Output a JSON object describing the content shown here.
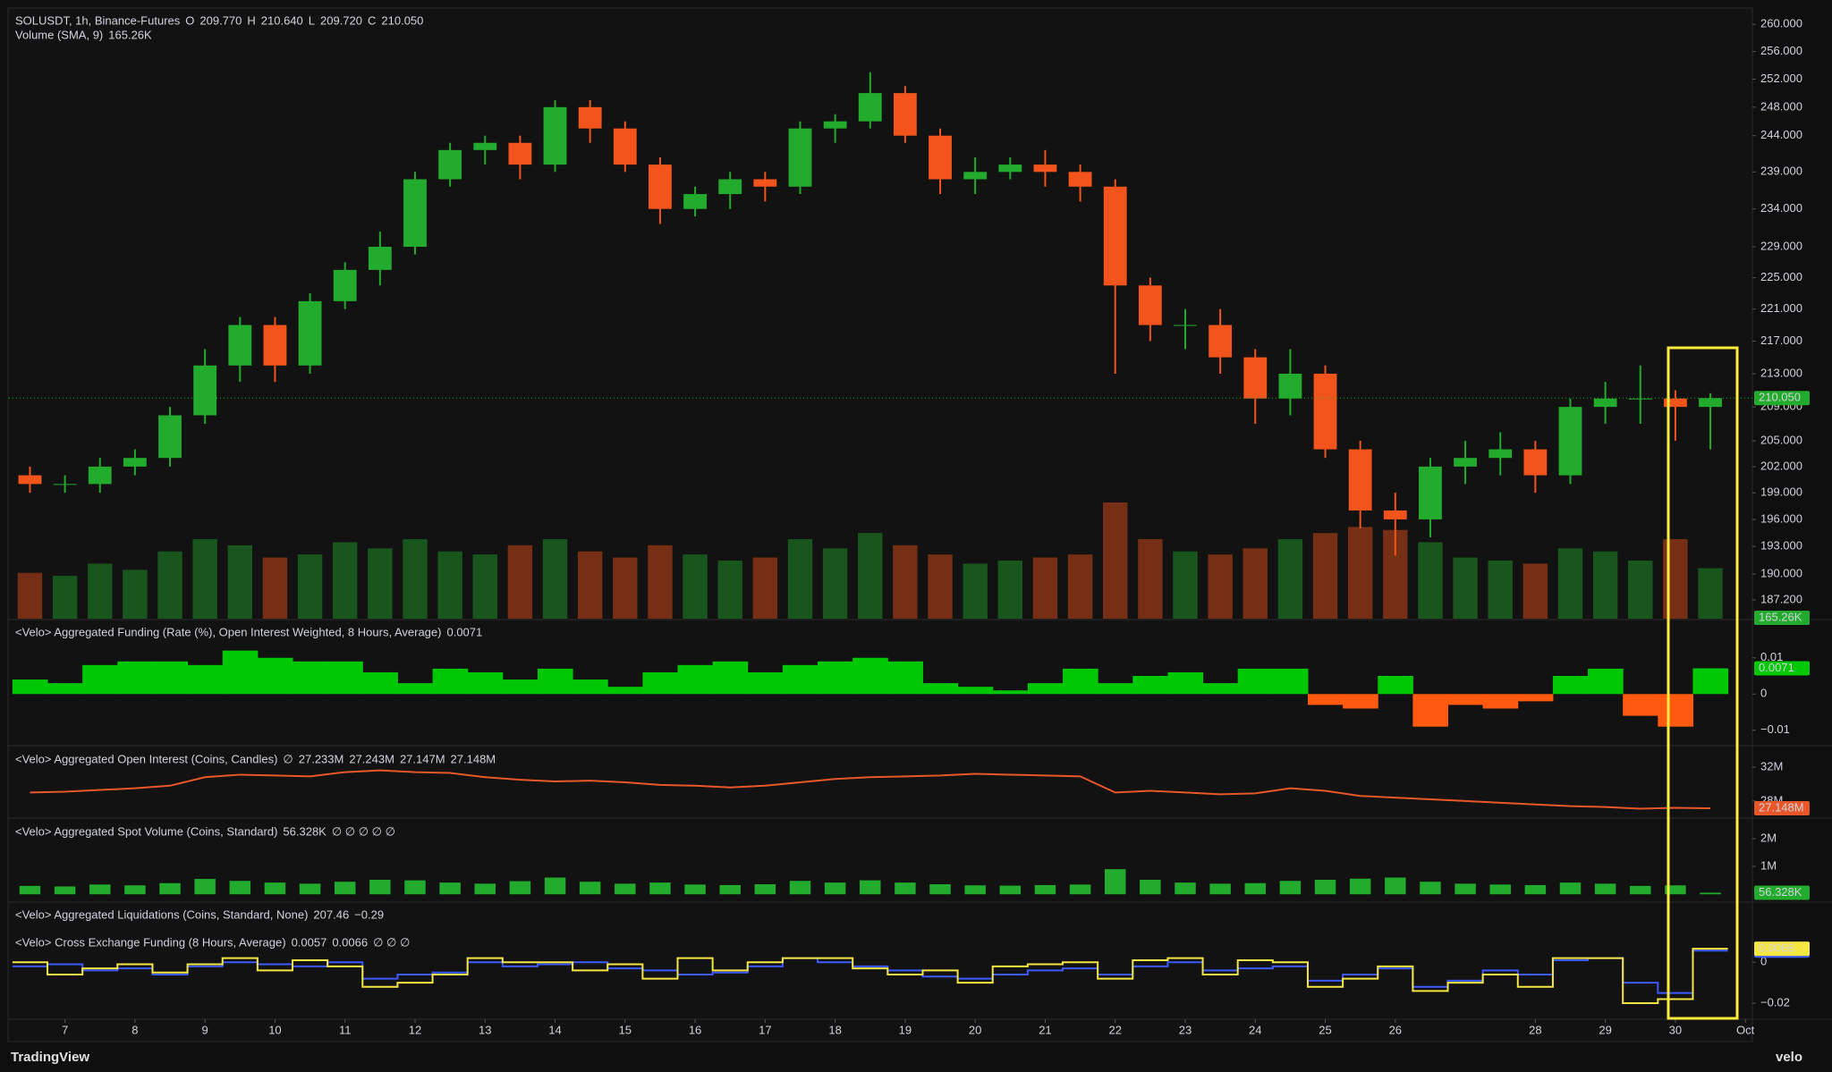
{
  "chart_data": [
    {
      "type": "candlestick",
      "title": "SOLUSDT, 1h, Binance-Futures",
      "legend": [
        {
          "label": "O",
          "value": "209.770"
        },
        {
          "label": "H",
          "value": "210.640"
        },
        {
          "label": "L",
          "value": "209.720"
        },
        {
          "label": "C",
          "value": "210.050"
        }
      ],
      "x": [
        6.5,
        7,
        7.5,
        8,
        8.5,
        9,
        9.5,
        10,
        10.5,
        11,
        11.5,
        12,
        12.5,
        13,
        13.5,
        14,
        14.5,
        15,
        15.5,
        16,
        16.5,
        17,
        17.5,
        18,
        18.5,
        19,
        19.5,
        20,
        20.5,
        21,
        21.5,
        22,
        22.5,
        23,
        23.5,
        24,
        24.5,
        25,
        25.5,
        26,
        26.5,
        27,
        27.5,
        28,
        28.5,
        29,
        29.5,
        30,
        30.5
      ],
      "open": [
        201,
        200,
        200,
        202,
        203,
        208,
        214,
        219,
        214,
        222,
        226,
        229,
        238,
        242,
        243,
        240,
        248,
        245,
        240,
        234,
        236,
        238,
        237,
        245,
        246,
        250,
        244,
        238,
        239,
        240,
        239,
        237,
        224,
        219,
        219,
        215,
        210,
        213,
        204,
        197,
        196,
        202,
        203,
        204,
        201,
        209,
        210,
        210,
        209
      ],
      "high": [
        202,
        201,
        203,
        204,
        209,
        216,
        220,
        220,
        223,
        227,
        231,
        239,
        243,
        244,
        244,
        249,
        249,
        246,
        241,
        237,
        239,
        239,
        246,
        247,
        253,
        251,
        245,
        241,
        241,
        242,
        240,
        238,
        225,
        221,
        221,
        216,
        216,
        214,
        205,
        199,
        203,
        205,
        206,
        205,
        210,
        212,
        214,
        211,
        210.64
      ],
      "low": [
        199,
        199,
        199,
        201,
        202,
        207,
        212,
        212,
        213,
        221,
        224,
        228,
        237,
        240,
        238,
        239,
        243,
        239,
        232,
        233,
        234,
        235,
        236,
        243,
        245,
        243,
        236,
        236,
        238,
        237,
        235,
        213,
        217,
        216,
        213,
        207,
        208,
        203,
        195,
        192,
        194,
        200,
        201,
        199,
        200,
        207,
        207,
        205,
        204
      ],
      "close": [
        200,
        200,
        202,
        203,
        208,
        214,
        219,
        214,
        222,
        226,
        229,
        238,
        242,
        243,
        240,
        248,
        245,
        240,
        234,
        236,
        238,
        237,
        245,
        246,
        250,
        244,
        238,
        239,
        240,
        239,
        237,
        224,
        219,
        219,
        215,
        210,
        213,
        204,
        197,
        196,
        202,
        203,
        204,
        201,
        209,
        210,
        210,
        209,
        210.05
      ],
      "up_color": "#22ab2c",
      "down_color": "#f2541b",
      "log": true,
      "ylim": [
        185.2,
        262.3
      ],
      "yticks": [
        {
          "value": 260,
          "label": "260.000"
        },
        {
          "value": 256,
          "label": "256.000"
        },
        {
          "value": 252,
          "label": "252.000"
        },
        {
          "value": 248,
          "label": "248.000"
        },
        {
          "value": 244,
          "label": "244.000"
        },
        {
          "value": 239,
          "label": "239.000"
        },
        {
          "value": 234,
          "label": "234.000"
        },
        {
          "value": 229,
          "label": "229.000"
        },
        {
          "value": 225,
          "label": "225.000"
        },
        {
          "value": 221,
          "label": "221.000"
        },
        {
          "value": 217,
          "label": "217.000"
        },
        {
          "value": 213,
          "label": "213.000"
        },
        {
          "value": 209,
          "label": "209.000"
        },
        {
          "value": 205,
          "label": "205.000"
        },
        {
          "value": 202,
          "label": "202.000"
        },
        {
          "value": 199,
          "label": "199.000"
        },
        {
          "value": 196,
          "label": "196.000"
        },
        {
          "value": 193,
          "label": "193.000"
        },
        {
          "value": 190,
          "label": "190.000"
        },
        {
          "value": 187.2,
          "label": "187.200"
        }
      ],
      "last": {
        "value": 210.05,
        "label": "210.050"
      },
      "volume": {
        "title": "Volume (SMA, 9)",
        "label": "165.26K",
        "values": [
          150,
          140,
          180,
          160,
          220,
          260,
          240,
          200,
          210,
          250,
          230,
          260,
          220,
          210,
          240,
          260,
          220,
          200,
          240,
          210,
          190,
          200,
          260,
          230,
          280,
          240,
          210,
          180,
          190,
          200,
          210,
          380,
          260,
          220,
          210,
          230,
          260,
          280,
          300,
          290,
          250,
          200,
          190,
          180,
          230,
          220,
          190,
          260,
          165
        ]
      },
      "xlim": [
        6.2,
        31.1
      ],
      "xticks": [
        7,
        8,
        9,
        10,
        11,
        12,
        13,
        14,
        15,
        16,
        17,
        18,
        19,
        20,
        21,
        22,
        23,
        24,
        25,
        26,
        28,
        29,
        30,
        {
          "value": 31,
          "label": "Oct"
        }
      ]
    },
    {
      "type": "area",
      "title": "<Velo> Aggregated Funding (Rate (%), Open Interest Weighted, 8 Hours, Average)",
      "last": 0.0071,
      "up_color": "#00c805",
      "down_color": "#ff5a0f",
      "values": [
        0.004,
        0.003,
        0.008,
        0.009,
        0.009,
        0.008,
        0.012,
        0.01,
        0.009,
        0.009,
        0.006,
        0.003,
        0.007,
        0.006,
        0.004,
        0.007,
        0.004,
        0.002,
        0.006,
        0.008,
        0.009,
        0.006,
        0.008,
        0.009,
        0.01,
        0.009,
        0.003,
        0.002,
        0.001,
        0.003,
        0.007,
        0.003,
        0.005,
        0.006,
        0.003,
        0.007,
        0.007,
        -0.003,
        -0.004,
        0.005,
        -0.009,
        -0.003,
        -0.004,
        -0.002,
        0.005,
        0.007,
        -0.006,
        -0.009,
        0.0071
      ],
      "ylim": [
        -0.014,
        0.0203
      ],
      "yticks": [
        0.01,
        0,
        {
          "value": -0.01,
          "label": "−0.01"
        }
      ]
    },
    {
      "type": "line",
      "title": "<Velo> Aggregated Open Interest (Coins, Candles)",
      "header": [
        {
          "text": "∅",
          "color": "#d1d4dc"
        },
        {
          "text": "27.233M",
          "color": "#f2541b"
        },
        {
          "text": "27.243M",
          "color": "#f2541b"
        },
        {
          "text": "27.147M",
          "color": "#f2541b"
        },
        {
          "text": "27.148M",
          "color": "#f2541b"
        }
      ],
      "color": "#e8572a",
      "values": [
        29000000,
        29100000,
        29300000,
        29500000,
        29800000,
        30800000,
        31100000,
        31000000,
        30900000,
        31400000,
        31600000,
        31400000,
        31300000,
        30800000,
        30500000,
        30300000,
        30400000,
        30200000,
        29900000,
        29800000,
        29600000,
        29800000,
        30200000,
        30600000,
        30800000,
        30900000,
        31000000,
        31200000,
        31100000,
        31000000,
        30900000,
        29000000,
        29200000,
        29000000,
        28800000,
        28900000,
        29500000,
        29200000,
        28600000,
        28400000,
        28200000,
        28000000,
        27800000,
        27600000,
        27400000,
        27300000,
        27100000,
        27200000,
        27148000
      ],
      "ylim": [
        26100000,
        34300000
      ],
      "yticks": [
        {
          "value": 32000000,
          "label": "32M"
        },
        {
          "value": 28000000,
          "label": "28M"
        }
      ],
      "last": {
        "value": 27148000,
        "label": "27.148M"
      }
    },
    {
      "type": "bar",
      "title": "<Velo> Aggregated Spot Volume (Coins, Standard)",
      "header": [
        {
          "text": "56.328K",
          "color": "#22ab2c"
        },
        {
          "text": "∅ ∅ ∅ ∅ ∅",
          "color": "#d1d4dc"
        }
      ],
      "color": "#22ab2c",
      "values": [
        300000,
        280000,
        350000,
        320000,
        400000,
        550000,
        480000,
        420000,
        380000,
        450000,
        520000,
        500000,
        420000,
        380000,
        470000,
        600000,
        450000,
        380000,
        420000,
        350000,
        330000,
        360000,
        480000,
        420000,
        500000,
        420000,
        360000,
        320000,
        310000,
        330000,
        350000,
        900000,
        520000,
        420000,
        380000,
        400000,
        480000,
        520000,
        560000,
        600000,
        450000,
        380000,
        350000,
        330000,
        420000,
        380000,
        300000,
        320000,
        56328
      ],
      "ylim": [
        -250000,
        2670000
      ],
      "yticks": [
        {
          "value": 2000000,
          "label": "2M"
        },
        {
          "value": 1000000,
          "label": "1M"
        }
      ],
      "last": {
        "value": 56328,
        "label": "56.328K"
      }
    },
    {
      "type": "text",
      "title": "<Velo> Aggregated Liquidations (Coins, Standard, None)",
      "header": [
        {
          "text": "207.46",
          "color": "#22ab2c"
        },
        {
          "text": "−0.29",
          "color": "#f2541b"
        }
      ]
    },
    {
      "type": "step",
      "title": "<Velo> Cross Exchange Funding (8 Hours, Average)",
      "header": [
        {
          "text": "0.0057",
          "color": "#3d5afe"
        },
        {
          "text": "0.0066",
          "color": "#f5e642"
        },
        {
          "text": "∅ ∅ ∅",
          "color": "#d1d4dc"
        }
      ],
      "series": [
        {
          "color": "#3d5afe",
          "last": 0.0057,
          "values": [
            -0.002,
            -0.001,
            -0.004,
            -0.003,
            -0.006,
            -0.002,
            0.0,
            -0.001,
            -0.002,
            0.0,
            -0.008,
            -0.006,
            -0.005,
            0.0,
            -0.002,
            -0.001,
            0.0,
            -0.003,
            -0.004,
            -0.006,
            -0.005,
            -0.002,
            0.002,
            0.0,
            -0.002,
            -0.004,
            -0.007,
            -0.008,
            -0.006,
            -0.004,
            -0.003,
            -0.006,
            -0.002,
            0.0,
            -0.004,
            -0.003,
            -0.002,
            -0.009,
            -0.006,
            -0.003,
            -0.012,
            -0.009,
            -0.004,
            -0.006,
            0.001,
            0.002,
            -0.01,
            -0.015,
            0.0057
          ]
        },
        {
          "color": "#f5e642",
          "last": 0.0066,
          "values": [
            0.0,
            -0.006,
            -0.003,
            -0.001,
            -0.005,
            -0.001,
            0.002,
            -0.004,
            0.001,
            -0.002,
            -0.012,
            -0.01,
            -0.006,
            0.002,
            0.0,
            0.0,
            -0.004,
            -0.001,
            -0.008,
            0.002,
            -0.004,
            0.0,
            0.002,
            0.002,
            -0.003,
            -0.006,
            -0.004,
            -0.01,
            -0.002,
            -0.001,
            0.0,
            -0.008,
            0.001,
            0.002,
            -0.006,
            0.001,
            0.0,
            -0.012,
            -0.008,
            -0.002,
            -0.014,
            -0.01,
            -0.006,
            -0.012,
            0.002,
            0.002,
            -0.02,
            -0.018,
            0.0066
          ]
        }
      ],
      "ylim": [
        -0.0274,
        0.0154
      ],
      "yticks": [
        0,
        {
          "value": -0.02,
          "label": "−0.02"
        }
      ]
    }
  ],
  "footer": {
    "brand": "TradingView",
    "watermark": "velo"
  }
}
